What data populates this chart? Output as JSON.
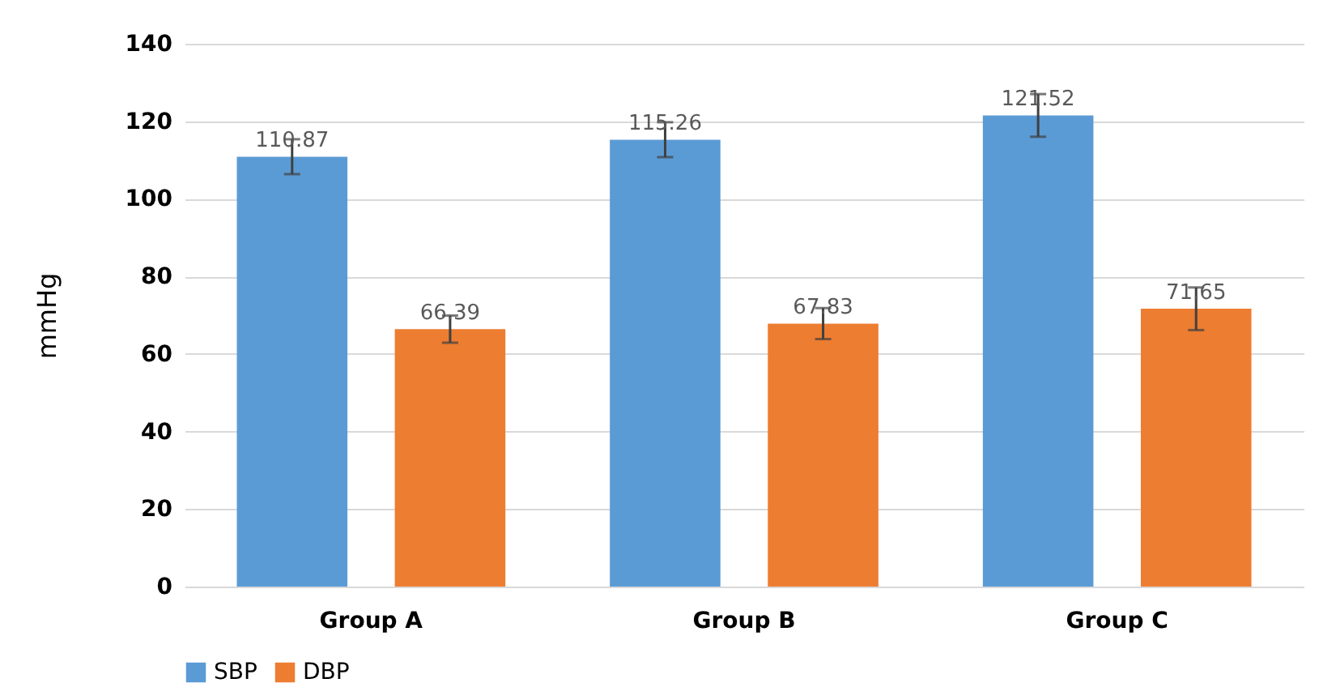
{
  "chart_data": {
    "type": "bar",
    "ylabel": "mmHg",
    "categories": [
      "Group A",
      "Group B",
      "Group C"
    ],
    "series": [
      {
        "name": "SBP",
        "color": "#5b9bd5",
        "values": [
          110.87,
          115.26,
          121.52
        ],
        "errors": [
          4.5,
          4.5,
          5.5
        ]
      },
      {
        "name": "DBP",
        "color": "#ed7d31",
        "values": [
          66.39,
          67.83,
          71.65
        ],
        "errors": [
          3.5,
          4,
          5.5
        ]
      }
    ],
    "ylim": [
      0,
      140
    ],
    "yticks": [
      0,
      20,
      40,
      60,
      80,
      100,
      120,
      140
    ],
    "grid": "y",
    "legend": "bottom",
    "data_labels": true
  }
}
